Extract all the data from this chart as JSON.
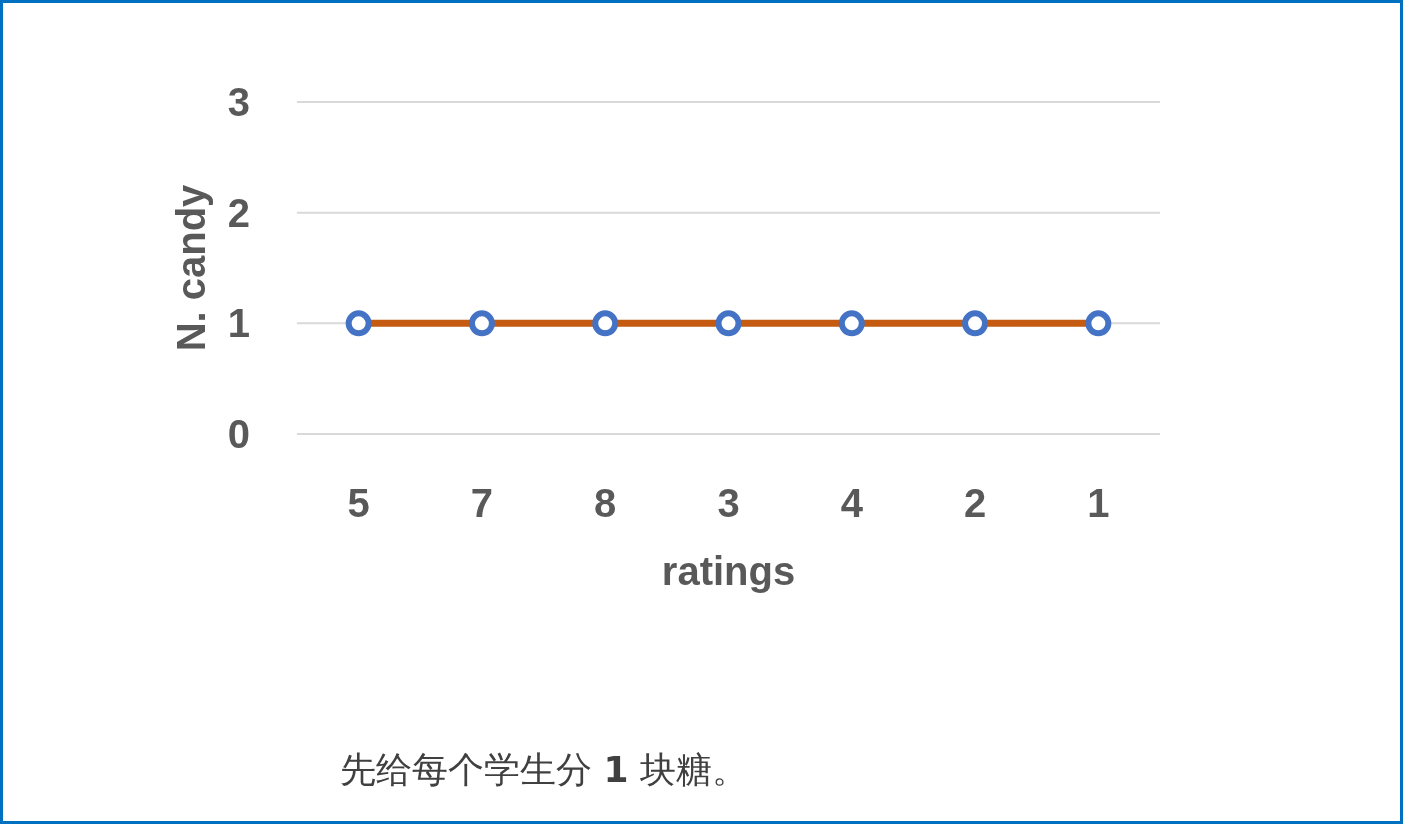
{
  "chart_data": {
    "type": "line",
    "categories": [
      "5",
      "7",
      "8",
      "3",
      "4",
      "2",
      "1"
    ],
    "series": [
      {
        "color": "#c55a11",
        "colors": [
          "#4472c4",
          "#4472c4",
          "#4472c4",
          "#4472c4",
          "#4472c4",
          "#4472c4",
          "#4472c4"
        ],
        "values": [
          1,
          1,
          1,
          1,
          1,
          1,
          1
        ]
      }
    ],
    "xlabel": "ratings",
    "ylabel": "N. candy",
    "ylim": [
      0,
      3
    ],
    "yticks": [
      0,
      1,
      2,
      3
    ],
    "grid": "y",
    "marker": "circle",
    "line_style": "solid",
    "annotations": [
      "先给每个学生分 **1** 块糖。"
    ]
  }
}
